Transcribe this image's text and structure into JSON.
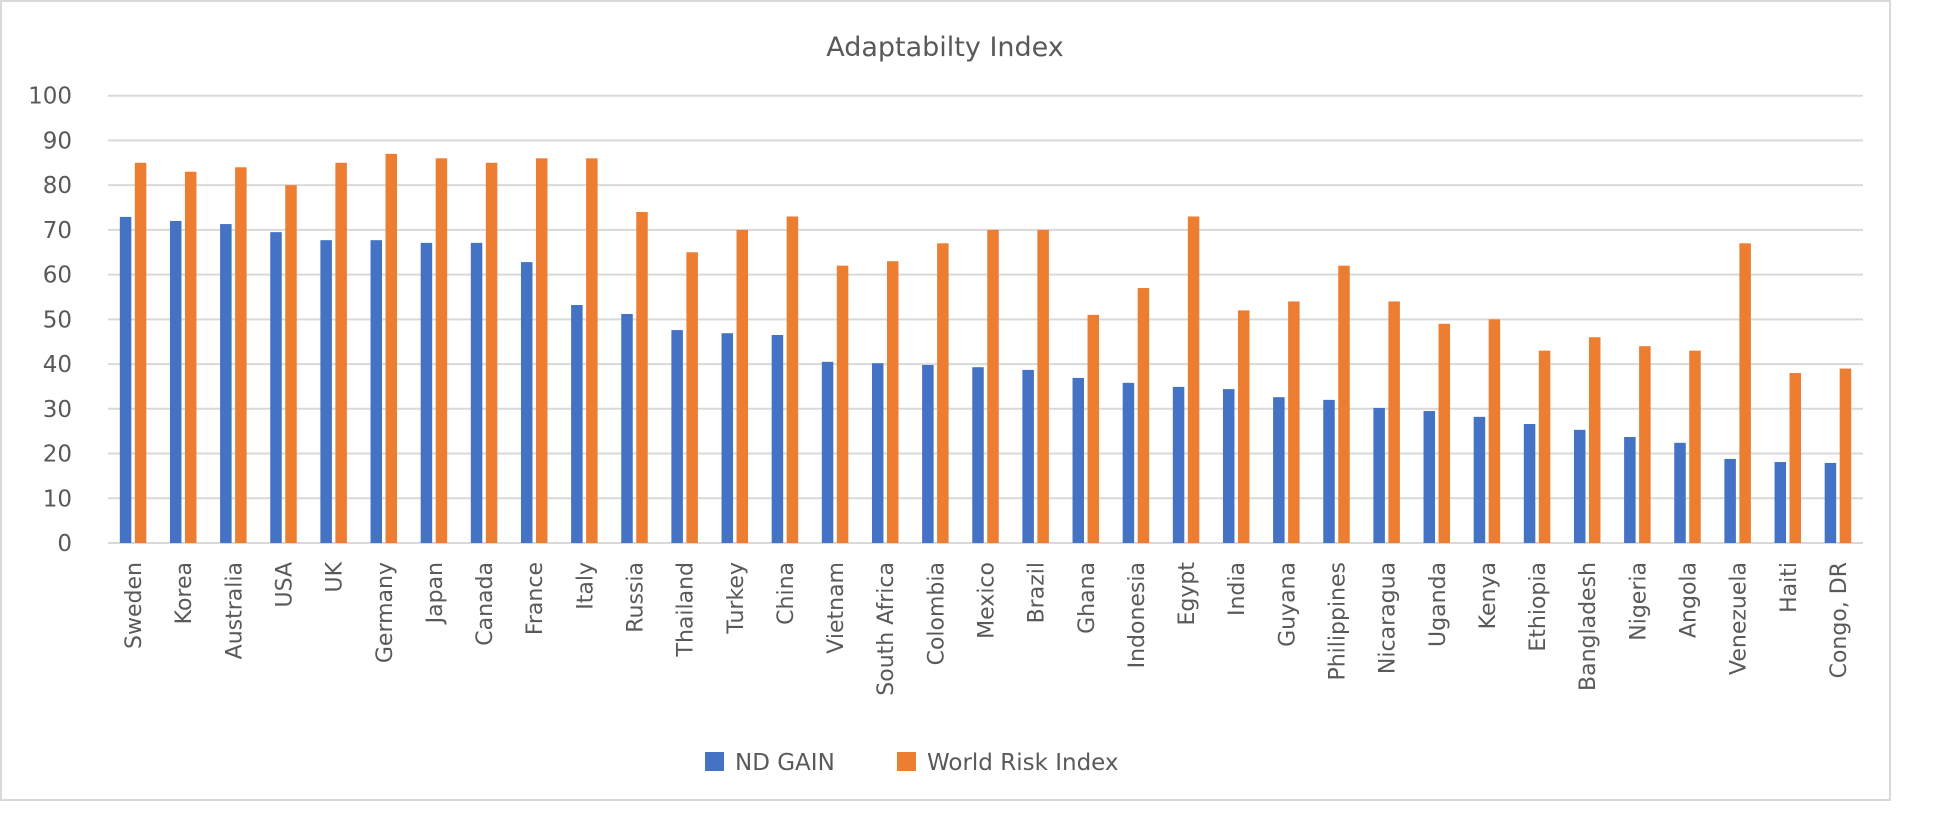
{
  "chart_data": {
    "type": "bar",
    "title": "Adaptabilty Index",
    "xlabel": "",
    "ylabel": "",
    "ylim": [
      0,
      100
    ],
    "yticks": [
      0,
      10,
      20,
      30,
      40,
      50,
      60,
      70,
      80,
      90,
      100
    ],
    "grid": true,
    "legend_position": "bottom",
    "categories": [
      "Sweden",
      "Korea",
      "Australia",
      "USA",
      "UK",
      "Germany",
      "Japan",
      "Canada",
      "France",
      "Italy",
      "Russia",
      "Thailand",
      "Turkey",
      "China",
      "Vietnam",
      "South Africa",
      "Colombia",
      "Mexico",
      "Brazil",
      "Ghana",
      "Indonesia",
      "Egypt",
      "India",
      "Guyana",
      "Philippines",
      "Nicaragua",
      "Uganda",
      "Kenya",
      "Ethiopia",
      "Bangladesh",
      "Nigeria",
      "Angola",
      "Venezuela",
      "Haiti",
      "Congo, DR"
    ],
    "series": [
      {
        "name": "ND GAIN",
        "color": "#4472c4",
        "values": [
          72.9,
          72.0,
          71.3,
          69.5,
          67.7,
          67.7,
          67.1,
          67.1,
          62.8,
          53.2,
          51.2,
          47.6,
          46.9,
          46.5,
          40.5,
          40.2,
          39.8,
          39.3,
          38.7,
          36.9,
          35.8,
          34.9,
          34.4,
          32.6,
          32.0,
          30.2,
          29.5,
          28.2,
          26.6,
          25.3,
          23.7,
          22.4,
          18.8,
          18.1,
          17.9
        ]
      },
      {
        "name": "World Risk Index",
        "color": "#ed7d31",
        "values": [
          85,
          83,
          84,
          80,
          85,
          87,
          86,
          85,
          86,
          86,
          74,
          65,
          70,
          73,
          62,
          63,
          67,
          70,
          70,
          51,
          57,
          73,
          52,
          54,
          62,
          54,
          49,
          50,
          43,
          46,
          44,
          43,
          67,
          38,
          39
        ]
      }
    ]
  },
  "colors": {
    "text": "#595959",
    "gridline": "#d9d9d9",
    "border": "#d9d9d9",
    "background": "#ffffff"
  }
}
